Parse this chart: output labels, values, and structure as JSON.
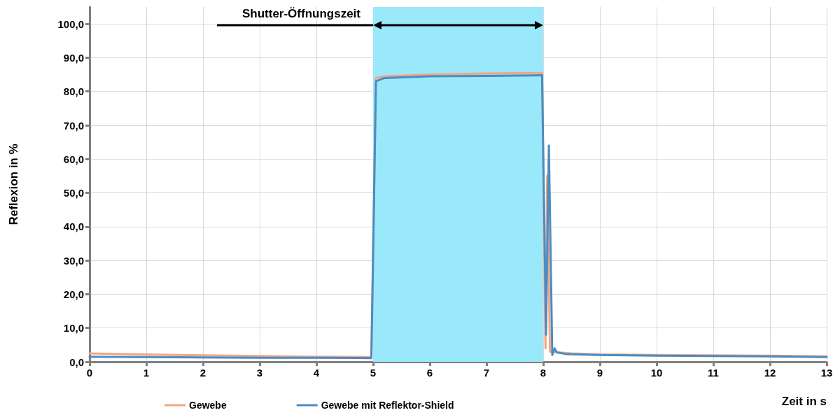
{
  "chart_data": {
    "type": "line",
    "xlabel": "Zeit in s",
    "ylabel": "Reflexion in %",
    "xlim": [
      0,
      13
    ],
    "xticks": [
      0,
      1,
      2,
      3,
      4,
      5,
      6,
      7,
      8,
      9,
      10,
      11,
      12,
      13
    ],
    "ylim": [
      0,
      105
    ],
    "yticks": [
      {
        "value": 0,
        "label": "0,0"
      },
      {
        "value": 10,
        "label": "10,0"
      },
      {
        "value": 20,
        "label": "20,0"
      },
      {
        "value": 30,
        "label": "30,0"
      },
      {
        "value": 40,
        "label": "40,0"
      },
      {
        "value": 50,
        "label": "50,0"
      },
      {
        "value": 60,
        "label": "60,0"
      },
      {
        "value": 70,
        "label": "70,0"
      },
      {
        "value": 80,
        "label": "80,0"
      },
      {
        "value": 90,
        "label": "90,0"
      },
      {
        "value": 100,
        "label": "100,0"
      }
    ],
    "grid": true,
    "legend": "bottom",
    "marker": "none",
    "line_style": "solid",
    "bands": [
      {
        "axis": "x",
        "from": 5,
        "to": 8,
        "color": "#99e9fb"
      }
    ],
    "annotations": [
      "Shutter-Öffnungszeit"
    ],
    "series": [
      {
        "name": "Gewebe",
        "color": "#f4a582",
        "x": [
          0,
          1,
          2,
          3,
          4,
          4.97,
          5.05,
          5.2,
          6,
          7,
          7.98,
          8.04,
          8.07,
          8.12,
          8.16,
          8.25,
          8.5,
          9,
          10,
          11,
          12,
          13
        ],
        "values": [
          2.5,
          2.2,
          1.9,
          1.7,
          1.5,
          1.4,
          84,
          84.5,
          85,
          85.3,
          85.5,
          4,
          55,
          3,
          3,
          2.8,
          2.5,
          2.2,
          2,
          1.9,
          1.8,
          1.6
        ]
      },
      {
        "name": "Gewebe mit Reflektor-Shield",
        "color": "#4a8cc4",
        "x": [
          0,
          1,
          2,
          3,
          4,
          4.97,
          5.05,
          5.2,
          6,
          7,
          7.98,
          8.05,
          8.1,
          8.16,
          8.2,
          8.24,
          8.4,
          9,
          10,
          11,
          12,
          13
        ],
        "values": [
          1.5,
          1.4,
          1.3,
          1.2,
          1.2,
          1.1,
          83,
          84,
          84.5,
          84.6,
          84.8,
          8,
          64,
          2,
          4,
          2.8,
          2.3,
          2,
          1.8,
          1.7,
          1.6,
          1.4
        ]
      }
    ]
  }
}
